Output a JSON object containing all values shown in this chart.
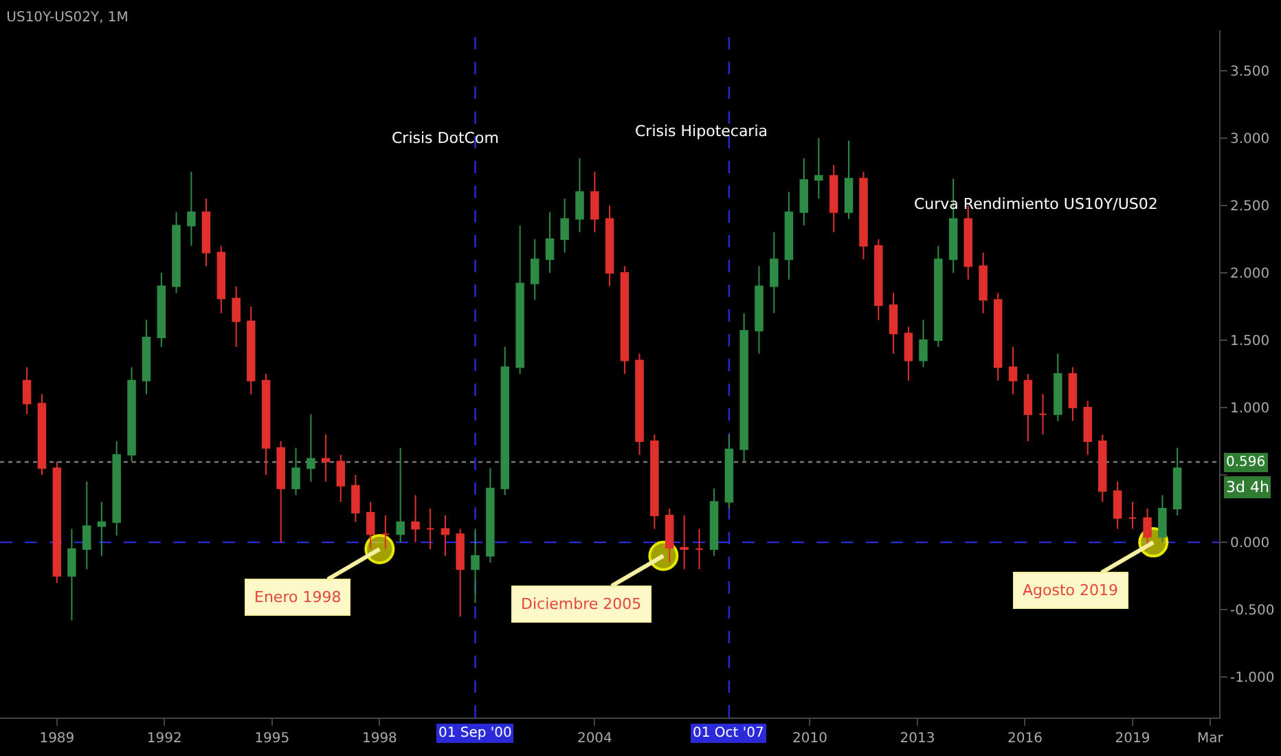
{
  "chart_data": {
    "type": "candlestick",
    "title": "US10Y-US02Y, 1M",
    "x": [
      "1988-03",
      "1988-08",
      "1989-01",
      "1989-06",
      "1989-11",
      "1990-04",
      "1990-09",
      "1991-02",
      "1991-07",
      "1991-12",
      "1992-05",
      "1992-10",
      "1993-03",
      "1993-08",
      "1994-01",
      "1994-06",
      "1994-11",
      "1995-04",
      "1995-09",
      "1996-02",
      "1996-07",
      "1996-12",
      "1997-05",
      "1997-10",
      "1998-03",
      "1998-08",
      "1999-01",
      "1999-06",
      "1999-11",
      "2000-04",
      "2000-09",
      "2001-02",
      "2001-07",
      "2001-12",
      "2002-05",
      "2002-10",
      "2003-03",
      "2003-08",
      "2004-01",
      "2004-06",
      "2004-11",
      "2005-04",
      "2005-09",
      "2006-02",
      "2006-07",
      "2006-12",
      "2007-05",
      "2007-10",
      "2008-03",
      "2008-08",
      "2009-01",
      "2009-06",
      "2009-11",
      "2010-04",
      "2010-09",
      "2011-02",
      "2011-07",
      "2011-12",
      "2012-05",
      "2012-10",
      "2013-03",
      "2013-08",
      "2014-01",
      "2014-06",
      "2014-11",
      "2015-04",
      "2015-09",
      "2016-02",
      "2016-07",
      "2016-12",
      "2017-05",
      "2017-10",
      "2018-03",
      "2018-08",
      "2019-01",
      "2019-06",
      "2019-11",
      "2020-04"
    ],
    "ohlc": [
      [
        1.2,
        1.3,
        0.95,
        1.03
      ],
      [
        1.03,
        1.1,
        0.5,
        0.55
      ],
      [
        0.55,
        0.6,
        -0.3,
        -0.25
      ],
      [
        -0.25,
        0.1,
        -0.58,
        -0.05
      ],
      [
        -0.05,
        0.45,
        -0.2,
        0.12
      ],
      [
        0.12,
        0.3,
        -0.1,
        0.15
      ],
      [
        0.15,
        0.75,
        0.05,
        0.65
      ],
      [
        0.65,
        1.3,
        0.6,
        1.2
      ],
      [
        1.2,
        1.65,
        1.1,
        1.52
      ],
      [
        1.52,
        2.0,
        1.45,
        1.9
      ],
      [
        1.9,
        2.45,
        1.85,
        2.35
      ],
      [
        2.35,
        2.75,
        2.2,
        2.45
      ],
      [
        2.45,
        2.55,
        2.05,
        2.15
      ],
      [
        2.15,
        2.2,
        1.7,
        1.81
      ],
      [
        1.81,
        1.9,
        1.45,
        1.64
      ],
      [
        1.64,
        1.75,
        1.1,
        1.2
      ],
      [
        1.2,
        1.25,
        0.5,
        0.7
      ],
      [
        0.7,
        0.75,
        0.0,
        0.4
      ],
      [
        0.4,
        0.7,
        0.35,
        0.55
      ],
      [
        0.55,
        0.95,
        0.45,
        0.62
      ],
      [
        0.62,
        0.8,
        0.45,
        0.6
      ],
      [
        0.6,
        0.65,
        0.3,
        0.42
      ],
      [
        0.42,
        0.5,
        0.15,
        0.22
      ],
      [
        0.22,
        0.3,
        -0.05,
        0.06
      ],
      [
        0.06,
        0.2,
        -0.05,
        0.06
      ],
      [
        0.06,
        0.7,
        0.0,
        0.15
      ],
      [
        0.15,
        0.35,
        0.0,
        0.1
      ],
      [
        0.1,
        0.25,
        -0.05,
        0.1
      ],
      [
        0.1,
        0.2,
        -0.1,
        0.06
      ],
      [
        0.06,
        0.1,
        -0.55,
        -0.2
      ],
      [
        -0.2,
        0.1,
        -0.45,
        -0.1
      ],
      [
        -0.1,
        0.55,
        -0.15,
        0.4
      ],
      [
        0.4,
        1.45,
        0.35,
        1.3
      ],
      [
        1.3,
        2.35,
        1.25,
        1.92
      ],
      [
        1.92,
        2.25,
        1.8,
        2.1
      ],
      [
        2.1,
        2.45,
        2.0,
        2.25
      ],
      [
        2.25,
        2.55,
        2.15,
        2.4
      ],
      [
        2.4,
        2.85,
        2.3,
        2.6
      ],
      [
        2.6,
        2.75,
        2.3,
        2.4
      ],
      [
        2.4,
        2.5,
        1.9,
        2.0
      ],
      [
        2.0,
        2.05,
        1.25,
        1.35
      ],
      [
        1.35,
        1.4,
        0.65,
        0.75
      ],
      [
        0.75,
        0.8,
        0.1,
        0.2
      ],
      [
        0.2,
        0.25,
        -0.15,
        -0.04
      ],
      [
        -0.04,
        0.2,
        -0.2,
        -0.05
      ],
      [
        -0.05,
        0.1,
        -0.2,
        -0.05
      ],
      [
        -0.05,
        0.4,
        -0.1,
        0.3
      ],
      [
        0.3,
        0.8,
        0.25,
        0.69
      ],
      [
        0.69,
        1.7,
        0.6,
        1.57
      ],
      [
        1.57,
        2.05,
        1.4,
        1.9
      ],
      [
        1.9,
        2.3,
        1.7,
        2.1
      ],
      [
        2.1,
        2.6,
        1.95,
        2.45
      ],
      [
        2.45,
        2.85,
        2.35,
        2.69
      ],
      [
        2.69,
        3.0,
        2.55,
        2.72
      ],
      [
        2.72,
        2.8,
        2.3,
        2.45
      ],
      [
        2.45,
        2.98,
        2.4,
        2.7
      ],
      [
        2.7,
        2.75,
        2.1,
        2.2
      ],
      [
        2.2,
        2.25,
        1.65,
        1.76
      ],
      [
        1.76,
        1.85,
        1.4,
        1.55
      ],
      [
        1.55,
        1.6,
        1.2,
        1.35
      ],
      [
        1.35,
        1.65,
        1.3,
        1.5
      ],
      [
        1.5,
        2.2,
        1.45,
        2.1
      ],
      [
        2.1,
        2.7,
        2.0,
        2.4
      ],
      [
        2.4,
        2.5,
        1.95,
        2.05
      ],
      [
        2.05,
        2.15,
        1.7,
        1.8
      ],
      [
        1.8,
        1.85,
        1.2,
        1.3
      ],
      [
        1.3,
        1.45,
        1.1,
        1.2
      ],
      [
        1.2,
        1.25,
        0.75,
        0.95
      ],
      [
        0.95,
        1.1,
        0.8,
        0.95
      ],
      [
        0.95,
        1.4,
        0.9,
        1.25
      ],
      [
        1.25,
        1.3,
        0.9,
        1.0
      ],
      [
        1.0,
        1.05,
        0.65,
        0.75
      ],
      [
        0.75,
        0.8,
        0.3,
        0.38
      ],
      [
        0.38,
        0.45,
        0.1,
        0.18
      ],
      [
        0.18,
        0.3,
        0.1,
        0.18
      ],
      [
        0.18,
        0.25,
        -0.05,
        0.04
      ],
      [
        0.04,
        0.35,
        0.0,
        0.25
      ],
      [
        0.25,
        0.7,
        0.2,
        0.55
      ]
    ],
    "colors": [
      "#e0302b",
      "#e0302b",
      "#e0302b",
      "#2e8b45",
      "#2e8b45",
      "#2e8b45",
      "#2e8b45",
      "#2e8b45",
      "#2e8b45",
      "#2e8b45",
      "#2e8b45",
      "#2e8b45",
      "#e0302b",
      "#e0302b",
      "#e0302b",
      "#e0302b",
      "#e0302b",
      "#e0302b",
      "#2e8b45",
      "#2e8b45",
      "#e0302b",
      "#e0302b",
      "#e0302b",
      "#e0302b",
      "#e0302b",
      "#2e8b45",
      "#e0302b",
      "#e0302b",
      "#e0302b",
      "#e0302b",
      "#2e8b45",
      "#2e8b45",
      "#2e8b45",
      "#2e8b45",
      "#2e8b45",
      "#2e8b45",
      "#2e8b45",
      "#2e8b45",
      "#e0302b",
      "#e0302b",
      "#e0302b",
      "#e0302b",
      "#e0302b",
      "#e0302b",
      "#e0302b",
      "#e0302b",
      "#2e8b45",
      "#2e8b45",
      "#2e8b45",
      "#2e8b45",
      "#2e8b45",
      "#2e8b45",
      "#2e8b45",
      "#2e8b45",
      "#e0302b",
      "#2e8b45",
      "#e0302b",
      "#e0302b",
      "#e0302b",
      "#e0302b",
      "#2e8b45",
      "#2e8b45",
      "#2e8b45",
      "#e0302b",
      "#e0302b",
      "#e0302b",
      "#e0302b",
      "#e0302b",
      "#e0302b",
      "#2e8b45",
      "#e0302b",
      "#e0302b",
      "#e0302b",
      "#e0302b",
      "#e0302b",
      "#e0302b",
      "#2e8b45",
      "#2e8b45"
    ],
    "xlim": [
      "1987-06",
      "2021-06"
    ],
    "xticks": [
      {
        "value": "1989",
        "label": "1989"
      },
      {
        "value": "1992",
        "label": "1992"
      },
      {
        "value": "1995",
        "label": "1995"
      },
      {
        "value": "1998",
        "label": "1998"
      },
      {
        "value": "2004",
        "label": "2004"
      },
      {
        "value": "2010",
        "label": "2010"
      },
      {
        "value": "2013",
        "label": "2013"
      },
      {
        "value": "2016",
        "label": "2016"
      },
      {
        "value": "2019",
        "label": "2019"
      },
      {
        "value": "2021-03",
        "label": "Mar"
      }
    ],
    "ylim": [
      -1.3,
      3.8
    ],
    "yticks": [
      {
        "value": -1,
        "label": "-1.000"
      },
      {
        "value": -0.5,
        "label": "-0.500"
      },
      {
        "value": 0,
        "label": "0.000"
      },
      {
        "value": 0.5,
        "label": null
      },
      {
        "value": 1,
        "label": "1.000"
      },
      {
        "value": 1.5,
        "label": "1.500"
      },
      {
        "value": 2,
        "label": "2.000"
      },
      {
        "value": 2.5,
        "label": "2.500"
      },
      {
        "value": 3,
        "label": "3.000"
      },
      {
        "value": 3.5,
        "label": "3.500"
      }
    ],
    "grid": false,
    "ref_lines": [
      {
        "axis": "y",
        "value": 0,
        "label": null,
        "color": "#2a2ad8",
        "line_style": "dashed"
      },
      {
        "axis": "y",
        "value": 0.596,
        "label": "0.596",
        "color": "#777777",
        "line_style": "dotted"
      },
      {
        "axis": "x",
        "value": "2000-09-01",
        "label": "01 Sep '00",
        "color": "#2a2ad8",
        "line_style": "dashed"
      },
      {
        "axis": "x",
        "value": "2007-10-01",
        "label": "01 Oct '07",
        "color": "#2a2ad8",
        "line_style": "dashed"
      }
    ],
    "annotations": [
      "Crisis DotCom",
      "Crisis Hipotecaria",
      "Curva Rendimiento US10Y/US02",
      "3d 4h",
      {
        "text": "Enero 1998",
        "x": "1998-01",
        "y": -0.05
      },
      {
        "text": "Diciembre 2005",
        "x": "2005-12",
        "y": -0.1
      },
      {
        "text": "Agosto 2019",
        "x": "2019-08",
        "y": 0
      }
    ]
  }
}
